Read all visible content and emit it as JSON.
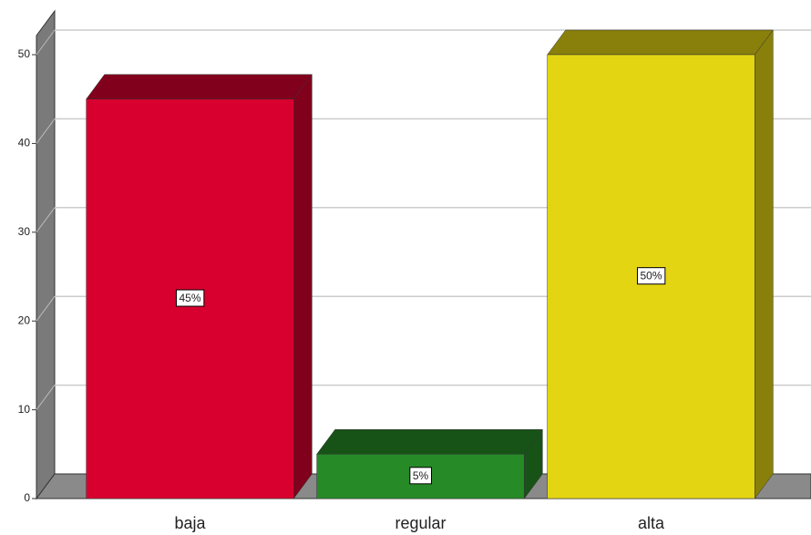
{
  "chart_data": {
    "type": "bar3d",
    "categories": [
      "baja",
      "regular",
      "alta"
    ],
    "values": [
      45,
      5,
      50
    ],
    "value_labels": [
      "45%",
      "5%",
      "50%"
    ],
    "colors": [
      "#d7002f",
      "#268a27",
      "#e3d512"
    ],
    "ylim": [
      0,
      54
    ],
    "yticks": [
      0,
      10,
      20,
      30,
      40,
      50
    ],
    "grid": true
  }
}
